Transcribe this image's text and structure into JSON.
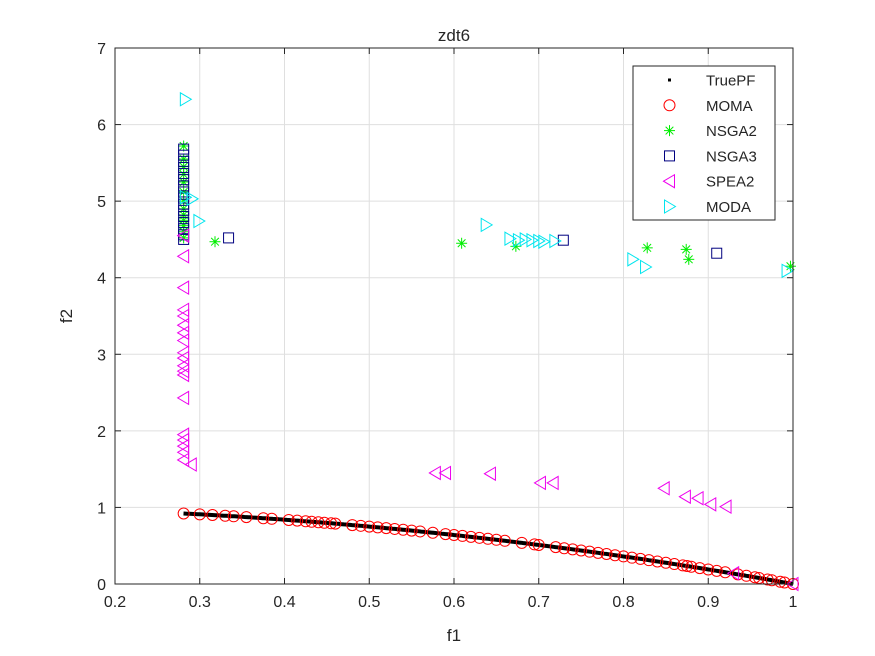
{
  "chart_data": {
    "type": "scatter",
    "title": "zdt6",
    "xlabel": "f1",
    "ylabel": "f2",
    "xlim": [
      0.2,
      1.0
    ],
    "ylim": [
      0,
      7
    ],
    "xticks": [
      0.2,
      0.3,
      0.4,
      0.5,
      0.6,
      0.7,
      0.8,
      0.9,
      1.0
    ],
    "xtick_labels": [
      "0.2",
      "0.3",
      "0.4",
      "0.5",
      "0.6",
      "0.7",
      "0.8",
      "0.9",
      "1"
    ],
    "yticks": [
      0,
      1,
      2,
      3,
      4,
      5,
      6,
      7
    ],
    "ytick_labels": [
      "0",
      "1",
      "2",
      "3",
      "4",
      "5",
      "6",
      "7"
    ],
    "grid": true,
    "legend_position": "top-right",
    "series": [
      {
        "name": "TruePF",
        "marker": "dot",
        "color": "#000000",
        "curve": "f2 = 1 - f1^2",
        "x_range": [
          0.2808,
          1.0
        ]
      },
      {
        "name": "MOMA",
        "marker": "circle",
        "color": "#ff0000",
        "x": [
          0.281,
          0.3,
          0.315,
          0.33,
          0.34,
          0.355,
          0.375,
          0.385,
          0.405,
          0.415,
          0.425,
          0.432,
          0.44,
          0.447,
          0.455,
          0.46,
          0.48,
          0.49,
          0.5,
          0.51,
          0.52,
          0.53,
          0.54,
          0.55,
          0.56,
          0.575,
          0.59,
          0.6,
          0.61,
          0.62,
          0.63,
          0.64,
          0.65,
          0.66,
          0.68,
          0.695,
          0.7,
          0.72,
          0.73,
          0.74,
          0.75,
          0.76,
          0.77,
          0.78,
          0.79,
          0.8,
          0.81,
          0.82,
          0.83,
          0.84,
          0.85,
          0.86,
          0.87,
          0.875,
          0.88,
          0.89,
          0.9,
          0.91,
          0.92,
          0.935,
          0.945,
          0.955,
          0.96,
          0.97,
          0.975,
          0.985,
          0.99,
          1.0
        ],
        "y_rule": "1 - x^2"
      },
      {
        "name": "NSGA2",
        "marker": "asterisk",
        "color": "#00ee00",
        "points": [
          [
            0.281,
            5.72
          ],
          [
            0.281,
            5.55
          ],
          [
            0.281,
            5.45
          ],
          [
            0.281,
            5.35
          ],
          [
            0.281,
            5.25
          ],
          [
            0.281,
            5.12
          ],
          [
            0.281,
            5.0
          ],
          [
            0.281,
            4.9
          ],
          [
            0.281,
            4.82
          ],
          [
            0.281,
            4.75
          ],
          [
            0.281,
            4.68
          ],
          [
            0.281,
            4.6
          ],
          [
            0.281,
            4.52
          ],
          [
            0.318,
            4.47
          ],
          [
            0.609,
            4.45
          ],
          [
            0.673,
            4.41
          ],
          [
            0.828,
            4.39
          ],
          [
            0.874,
            4.37
          ],
          [
            0.877,
            4.24
          ],
          [
            0.997,
            4.15
          ]
        ]
      },
      {
        "name": "NSGA3",
        "marker": "square",
        "color": "#000080",
        "points": [
          [
            0.281,
            5.68
          ],
          [
            0.281,
            5.6
          ],
          [
            0.281,
            5.52
          ],
          [
            0.281,
            5.44
          ],
          [
            0.281,
            5.36
          ],
          [
            0.281,
            5.28
          ],
          [
            0.281,
            5.2
          ],
          [
            0.281,
            5.12
          ],
          [
            0.281,
            5.04
          ],
          [
            0.281,
            4.96
          ],
          [
            0.281,
            4.88
          ],
          [
            0.281,
            4.8
          ],
          [
            0.281,
            4.72
          ],
          [
            0.281,
            4.64
          ],
          [
            0.281,
            4.56
          ],
          [
            0.281,
            4.5
          ],
          [
            0.334,
            4.52
          ],
          [
            0.729,
            4.49
          ],
          [
            0.91,
            4.32
          ]
        ]
      },
      {
        "name": "SPEA2",
        "marker": "triangle-left",
        "color": "#ee00ee",
        "points": [
          [
            0.281,
            4.55
          ],
          [
            0.281,
            4.28
          ],
          [
            0.281,
            3.87
          ],
          [
            0.281,
            3.58
          ],
          [
            0.281,
            3.5
          ],
          [
            0.281,
            3.38
          ],
          [
            0.281,
            3.28
          ],
          [
            0.281,
            3.18
          ],
          [
            0.281,
            3.02
          ],
          [
            0.281,
            2.95
          ],
          [
            0.281,
            2.85
          ],
          [
            0.281,
            2.78
          ],
          [
            0.281,
            2.73
          ],
          [
            0.281,
            2.43
          ],
          [
            0.281,
            1.95
          ],
          [
            0.281,
            1.88
          ],
          [
            0.281,
            1.8
          ],
          [
            0.281,
            1.72
          ],
          [
            0.281,
            1.62
          ],
          [
            0.29,
            1.56
          ],
          [
            0.578,
            1.45
          ],
          [
            0.59,
            1.45
          ],
          [
            0.643,
            1.44
          ],
          [
            0.702,
            1.32
          ],
          [
            0.717,
            1.32
          ],
          [
            0.848,
            1.25
          ],
          [
            0.873,
            1.14
          ],
          [
            0.888,
            1.12
          ],
          [
            0.903,
            1.04
          ],
          [
            0.921,
            1.01
          ],
          [
            0.93,
            0.14
          ],
          [
            1.0,
            0.0
          ]
        ]
      },
      {
        "name": "MODA",
        "marker": "triangle-right",
        "color": "#00e5ee",
        "points": [
          [
            0.283,
            6.33
          ],
          [
            0.283,
            5.05
          ],
          [
            0.291,
            5.03
          ],
          [
            0.299,
            4.74
          ],
          [
            0.638,
            4.69
          ],
          [
            0.666,
            4.51
          ],
          [
            0.676,
            4.49
          ],
          [
            0.684,
            4.5
          ],
          [
            0.692,
            4.49
          ],
          [
            0.7,
            4.48
          ],
          [
            0.706,
            4.47
          ],
          [
            0.719,
            4.48
          ],
          [
            0.811,
            4.24
          ],
          [
            0.826,
            4.14
          ],
          [
            0.993,
            4.09
          ]
        ]
      }
    ]
  }
}
